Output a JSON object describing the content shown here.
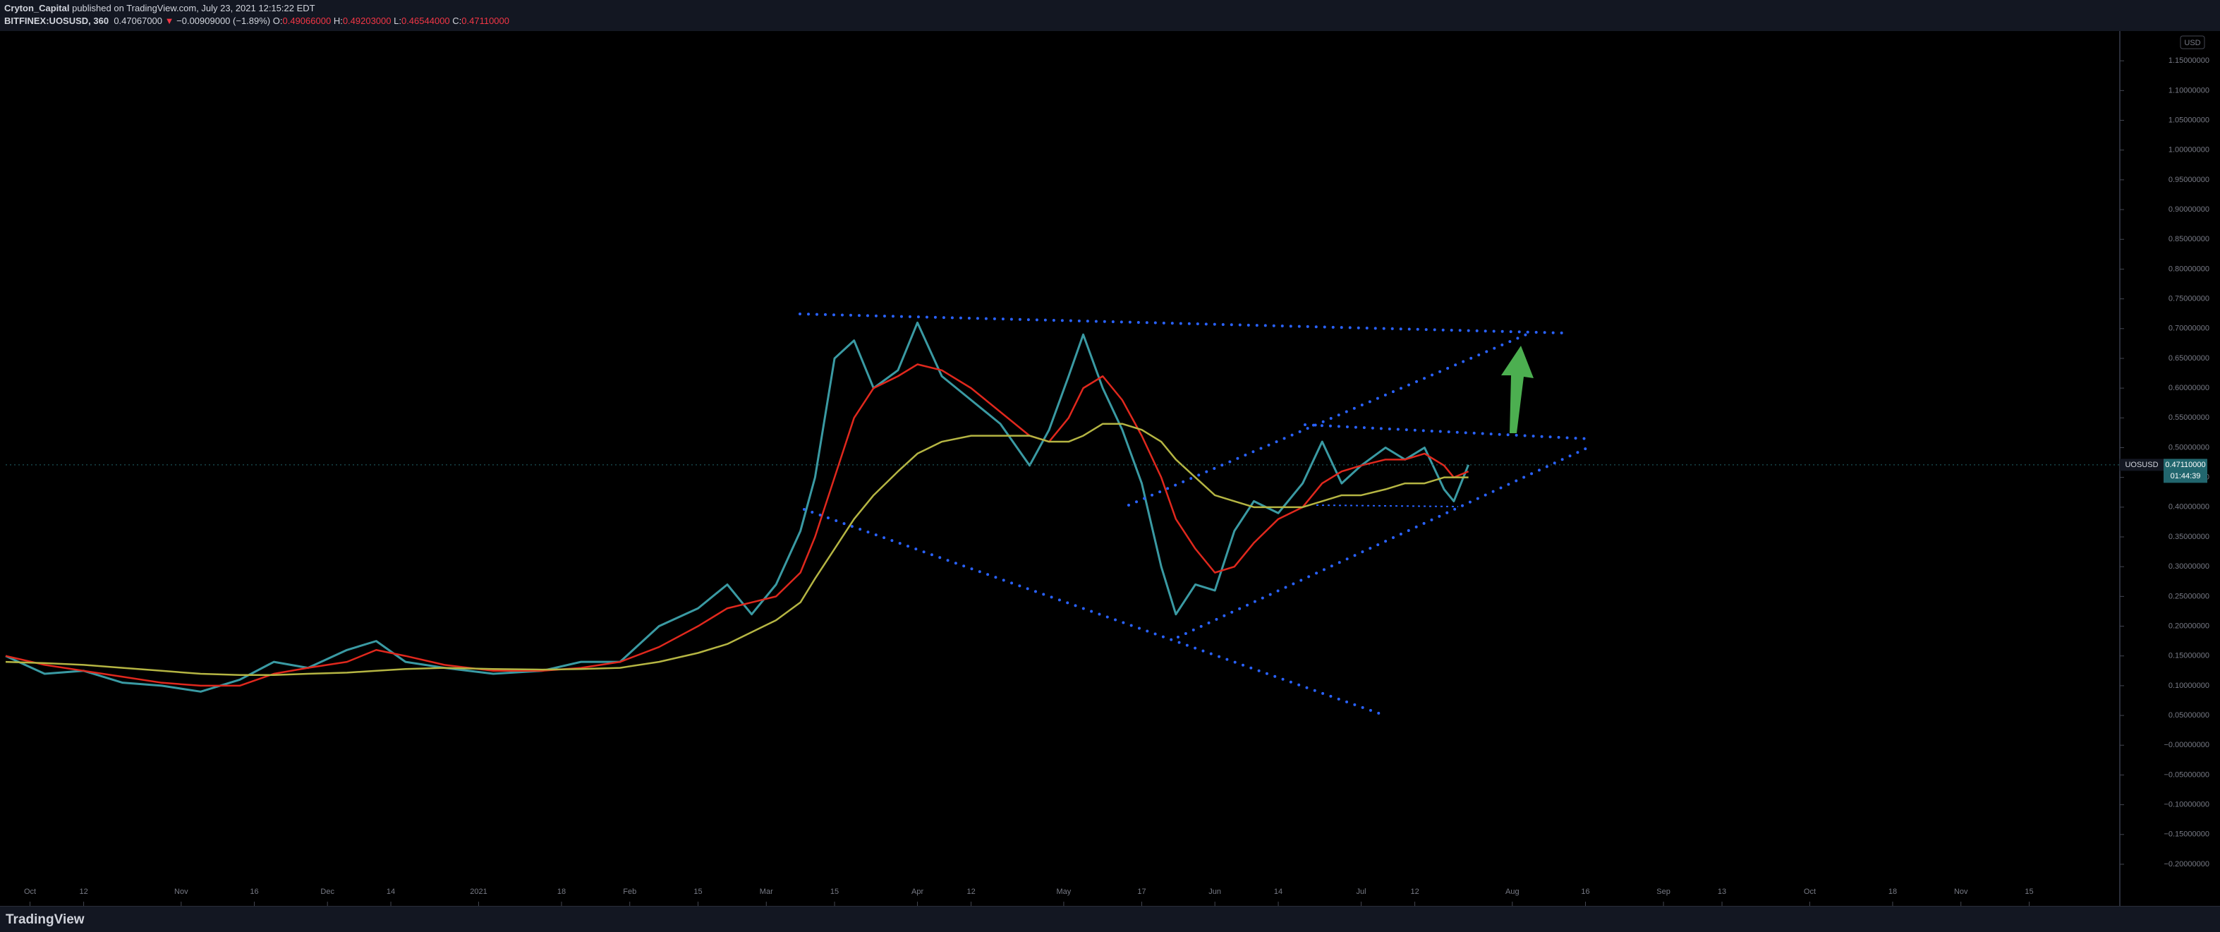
{
  "header": {
    "publisher": "Cryton_Capital",
    "published": "published on TradingView.com, July 23, 2021 12:15:22 EDT",
    "symbol": "BITFINEX:UOSUSD, 360",
    "last": "0.47067000",
    "direction": "▼",
    "change": "−0.00909000 (−1.89%)",
    "ohlc": [
      {
        "label": "O:",
        "value": "0.49066000"
      },
      {
        "label": "H:",
        "value": "0.49203000"
      },
      {
        "label": "L:",
        "value": "0.46544000"
      },
      {
        "label": "C:",
        "value": "0.47110000"
      }
    ]
  },
  "currency": "USD",
  "price_tag": {
    "symbol": "UOSUSD",
    "price": "0.47110000",
    "countdown": "01:44:39"
  },
  "footer": {
    "brand": "TradingView"
  },
  "chart_data": {
    "type": "line",
    "x": [
      0,
      8,
      16,
      24,
      32,
      40,
      48,
      55,
      62,
      70,
      76,
      82,
      90,
      100,
      110,
      118,
      126,
      134,
      142,
      148,
      153,
      158,
      163,
      166,
      170,
      174,
      178,
      183,
      187,
      192,
      198,
      204,
      210,
      214,
      218,
      221,
      225,
      229,
      233,
      237,
      240,
      244,
      248,
      252,
      256,
      261,
      266,
      270,
      274,
      278,
      283,
      287,
      291,
      295,
      297,
      300
    ],
    "series": [
      {
        "color": "#3a9aa3",
        "values": [
          0.15,
          0.12,
          0.125,
          0.105,
          0.1,
          0.09,
          0.11,
          0.14,
          0.13,
          0.16,
          0.175,
          0.14,
          0.13,
          0.12,
          0.125,
          0.14,
          0.14,
          0.2,
          0.23,
          0.27,
          0.22,
          0.27,
          0.36,
          0.45,
          0.65,
          0.68,
          0.6,
          0.63,
          0.71,
          0.62,
          0.58,
          0.54,
          0.47,
          0.53,
          0.62,
          0.69,
          0.6,
          0.53,
          0.44,
          0.3,
          0.22,
          0.27,
          0.26,
          0.36,
          0.41,
          0.39,
          0.44,
          0.51,
          0.44,
          0.47,
          0.5,
          0.48,
          0.5,
          0.43,
          0.41,
          0.4711
        ]
      },
      {
        "color": "#e0281d",
        "values": [
          0.15,
          0.135,
          0.125,
          0.115,
          0.105,
          0.1,
          0.1,
          0.12,
          0.13,
          0.14,
          0.16,
          0.15,
          0.135,
          0.125,
          0.125,
          0.13,
          0.14,
          0.165,
          0.2,
          0.23,
          0.24,
          0.25,
          0.29,
          0.35,
          0.45,
          0.55,
          0.6,
          0.62,
          0.64,
          0.63,
          0.6,
          0.56,
          0.52,
          0.51,
          0.55,
          0.6,
          0.62,
          0.58,
          0.52,
          0.45,
          0.38,
          0.33,
          0.29,
          0.3,
          0.34,
          0.38,
          0.4,
          0.44,
          0.46,
          0.47,
          0.48,
          0.48,
          0.49,
          0.47,
          0.45,
          0.46
        ]
      },
      {
        "color": "#b5b543",
        "values": [
          0.14,
          0.138,
          0.135,
          0.13,
          0.125,
          0.12,
          0.118,
          0.118,
          0.12,
          0.122,
          0.125,
          0.128,
          0.13,
          0.128,
          0.127,
          0.128,
          0.13,
          0.14,
          0.155,
          0.17,
          0.19,
          0.21,
          0.24,
          0.28,
          0.33,
          0.38,
          0.42,
          0.46,
          0.49,
          0.51,
          0.52,
          0.52,
          0.52,
          0.51,
          0.51,
          0.52,
          0.54,
          0.54,
          0.53,
          0.51,
          0.48,
          0.45,
          0.42,
          0.41,
          0.4,
          0.4,
          0.4,
          0.41,
          0.42,
          0.42,
          0.43,
          0.44,
          0.44,
          0.45,
          0.45,
          0.45
        ]
      }
    ],
    "xlim": [
      0,
      432
    ],
    "xticks": [
      {
        "value": 5,
        "label": "Oct"
      },
      {
        "value": 16,
        "label": "12"
      },
      {
        "value": 36,
        "label": "Nov"
      },
      {
        "value": 51,
        "label": "16"
      },
      {
        "value": 66,
        "label": "Dec"
      },
      {
        "value": 79,
        "label": "14"
      },
      {
        "value": 97,
        "label": "2021"
      },
      {
        "value": 114,
        "label": "18"
      },
      {
        "value": 128,
        "label": "Feb"
      },
      {
        "value": 142,
        "label": "15"
      },
      {
        "value": 156,
        "label": "Mar"
      },
      {
        "value": 170,
        "label": "15"
      },
      {
        "value": 187,
        "label": "Apr"
      },
      {
        "value": 198,
        "label": "12"
      },
      {
        "value": 217,
        "label": "May"
      },
      {
        "value": 233,
        "label": "17"
      },
      {
        "value": 248,
        "label": "Jun"
      },
      {
        "value": 261,
        "label": "14"
      },
      {
        "value": 278,
        "label": "Jul"
      },
      {
        "value": 289,
        "label": "12"
      },
      {
        "value": 309,
        "label": "Aug"
      },
      {
        "value": 324,
        "label": "16"
      },
      {
        "value": 340,
        "label": "Sep"
      },
      {
        "value": 352,
        "label": "13"
      },
      {
        "value": 370,
        "label": "Oct"
      },
      {
        "value": 387,
        "label": "18"
      },
      {
        "value": 401,
        "label": "Nov"
      },
      {
        "value": 415,
        "label": "15"
      }
    ],
    "ylim": [
      -0.27,
      1.2
    ],
    "yticks": [
      {
        "value": 1.15,
        "label": "1.15000000"
      },
      {
        "value": 1.1,
        "label": "1.10000000"
      },
      {
        "value": 1.05,
        "label": "1.05000000"
      },
      {
        "value": 1,
        "label": "1.00000000"
      },
      {
        "value": 0.95,
        "label": "0.95000000"
      },
      {
        "value": 0.9,
        "label": "0.90000000"
      },
      {
        "value": 0.85,
        "label": "0.85000000"
      },
      {
        "value": 0.8,
        "label": "0.80000000"
      },
      {
        "value": 0.75,
        "label": "0.75000000"
      },
      {
        "value": 0.7,
        "label": "0.70000000"
      },
      {
        "value": 0.65,
        "label": "0.65000000"
      },
      {
        "value": 0.6,
        "label": "0.60000000"
      },
      {
        "value": 0.55,
        "label": "0.55000000"
      },
      {
        "value": 0.5,
        "label": "0.50000000"
      },
      {
        "value": 0.45,
        "label": "0.45000000"
      },
      {
        "value": 0.4,
        "label": "0.40000000"
      },
      {
        "value": 0.35,
        "label": "0.35000000"
      },
      {
        "value": 0.3,
        "label": "0.30000000"
      },
      {
        "value": 0.25,
        "label": "0.25000000"
      },
      {
        "value": 0.2,
        "label": "0.20000000"
      },
      {
        "value": 0.15,
        "label": "0.15000000"
      },
      {
        "value": 0.1,
        "label": "0.10000000"
      },
      {
        "value": 0.05,
        "label": "0.05000000"
      },
      {
        "value": 0,
        "label": "−0.00000000"
      },
      {
        "value": -0.05,
        "label": "−0.05000000"
      },
      {
        "value": -0.1,
        "label": "−0.10000000"
      },
      {
        "value": -0.15,
        "label": "−0.15000000"
      },
      {
        "value": -0.2,
        "label": "−0.20000000"
      }
    ],
    "last_price": 0.4711,
    "grid": false
  }
}
